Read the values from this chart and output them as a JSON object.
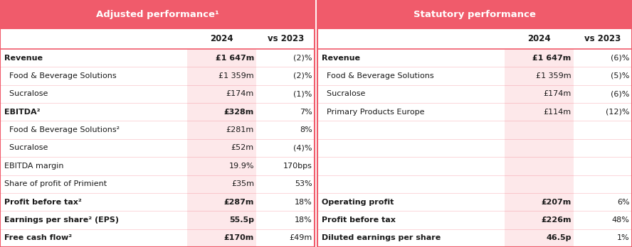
{
  "header_color": "#f05b6b",
  "header_text_color": "#ffffff",
  "subheader_text_color": "#1a1a1a",
  "row_text_color": "#1a1a1a",
  "highlight_col_color": "#fde8ea",
  "border_color": "#f05b6b",
  "bg_color": "#ffffff",
  "left_header": "Adjusted performance¹",
  "right_header": "Statutory performance",
  "left_rows": [
    {
      "label": "Revenue",
      "bold": true,
      "val": "£1 647m",
      "chg": "(2)%"
    },
    {
      "label": "  Food & Beverage Solutions",
      "bold": false,
      "val": "£1 359m",
      "chg": "(2)%"
    },
    {
      "label": "  Sucralose",
      "bold": false,
      "val": "£174m",
      "chg": "(1)%"
    },
    {
      "label": "EBITDA²",
      "bold": true,
      "val": "£328m",
      "chg": "7%"
    },
    {
      "label": "  Food & Beverage Solutions²",
      "bold": false,
      "val": "£281m",
      "chg": "8%"
    },
    {
      "label": "  Sucralose",
      "bold": false,
      "val": "£52m",
      "chg": "(4)%"
    },
    {
      "label": "EBITDA margin",
      "bold": false,
      "val": "19.9%",
      "chg": "170bps"
    },
    {
      "label": "Share of profit of Primient",
      "bold": false,
      "val": "£35m",
      "chg": "53%"
    },
    {
      "label": "Profit before tax²",
      "bold": true,
      "val": "£287m",
      "chg": "18%"
    },
    {
      "label": "Earnings per share² (EPS)",
      "bold": true,
      "val": "55.5p",
      "chg": "18%"
    },
    {
      "label": "Free cash flow²",
      "bold": true,
      "val": "£170m",
      "chg": "£49m"
    }
  ],
  "right_rows": [
    {
      "label": "Revenue",
      "bold": true,
      "val": "£1 647m",
      "chg": "(6)%"
    },
    {
      "label": "  Food & Beverage Solutions",
      "bold": false,
      "val": "£1 359m",
      "chg": "(5)%"
    },
    {
      "label": "  Sucralose",
      "bold": false,
      "val": "£174m",
      "chg": "(6)%"
    },
    {
      "label": "  Primary Products Europe",
      "bold": false,
      "val": "£114m",
      "chg": "(12)%"
    },
    {
      "label": "",
      "bold": false,
      "val": "",
      "chg": ""
    },
    {
      "label": "",
      "bold": false,
      "val": "",
      "chg": ""
    },
    {
      "label": "",
      "bold": false,
      "val": "",
      "chg": ""
    },
    {
      "label": "",
      "bold": false,
      "val": "",
      "chg": ""
    },
    {
      "label": "Operating profit",
      "bold": true,
      "val": "£207m",
      "chg": "6%"
    },
    {
      "label": "Profit before tax",
      "bold": true,
      "val": "£226m",
      "chg": "48%"
    },
    {
      "label": "Diluted earnings per share",
      "bold": true,
      "val": "46.5p",
      "chg": "1%"
    }
  ]
}
